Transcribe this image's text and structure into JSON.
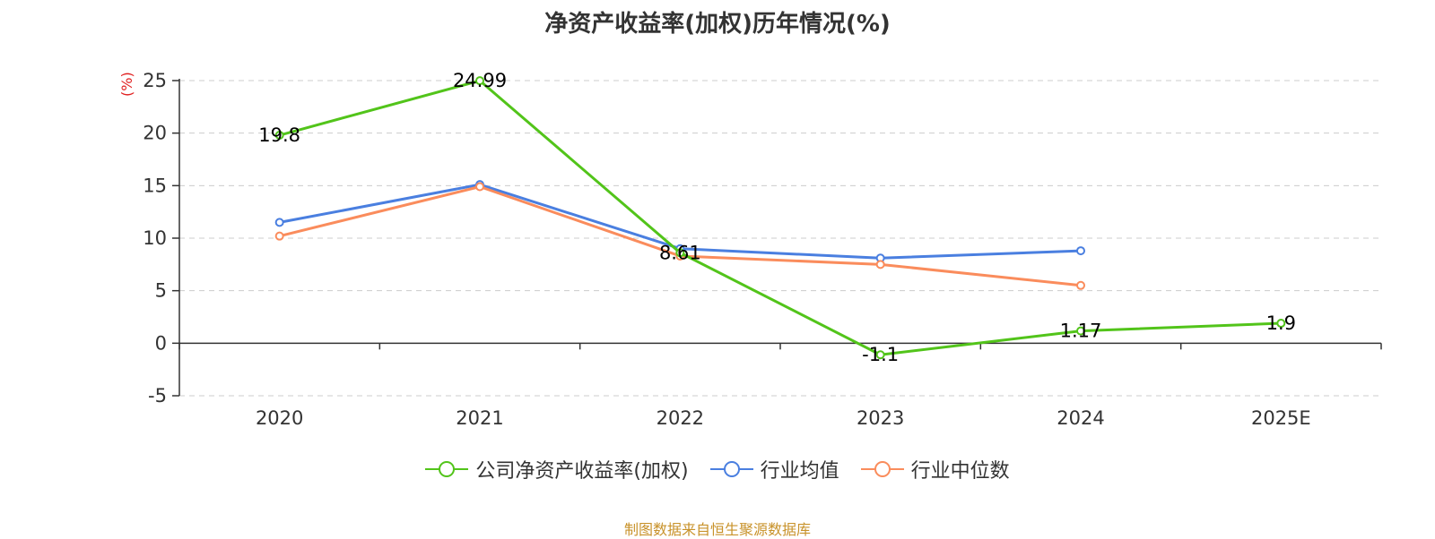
{
  "chart_data": {
    "type": "line",
    "title": "净资产收益率(加权)历年情况(%)",
    "ylabel": "(%)",
    "categories": [
      "2020",
      "2021",
      "2022",
      "2023",
      "2024",
      "2025E"
    ],
    "ylim": [
      -5,
      25
    ],
    "yticks": [
      25,
      20,
      15,
      10,
      5,
      0,
      -5
    ],
    "grid": true,
    "legend_position": "bottom",
    "series": [
      {
        "name": "公司净资产收益率(加权)",
        "color": "#52c41a",
        "values": [
          19.8,
          24.99,
          8.61,
          -1.1,
          1.17,
          1.9
        ],
        "labels": [
          "19.8",
          "24.99",
          "8.61",
          "-1.1",
          "1.17",
          "1.9"
        ]
      },
      {
        "name": "行业均值",
        "color": "#4a7fe0",
        "values": [
          11.5,
          15.1,
          9.0,
          8.1,
          8.8,
          null
        ]
      },
      {
        "name": "行业中位数",
        "color": "#fa8c5c",
        "values": [
          10.2,
          14.9,
          8.3,
          7.5,
          5.5,
          null
        ]
      }
    ]
  },
  "source": "制图数据来自恒生聚源数据库"
}
